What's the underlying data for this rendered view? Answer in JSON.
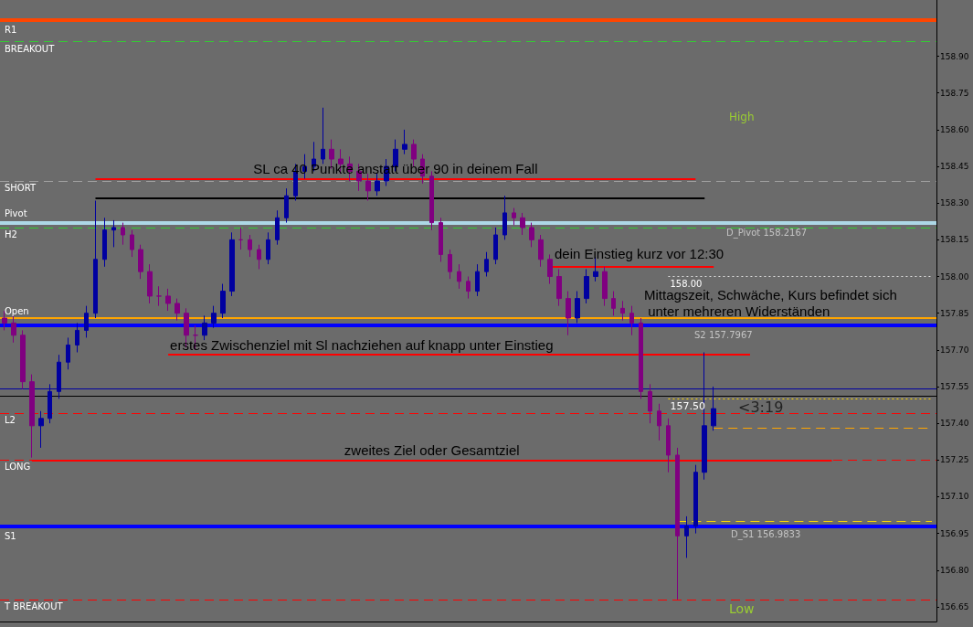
{
  "chart_data": {
    "type": "candlestick",
    "categories": [
      null,
      null,
      null,
      null,
      null,
      null,
      null,
      null,
      null,
      null,
      null,
      null,
      null,
      null,
      null,
      null,
      null,
      null,
      null,
      null,
      null,
      null,
      null,
      null,
      null,
      null,
      null,
      null,
      null,
      null,
      null,
      null,
      null,
      null,
      null,
      null,
      null,
      null,
      null,
      null,
      null,
      null,
      null,
      null,
      null,
      null,
      null,
      null,
      null,
      null,
      null,
      null,
      null,
      null,
      null,
      null,
      null,
      null,
      null,
      null,
      null,
      null,
      null,
      null,
      null,
      null,
      null,
      null,
      null,
      null,
      null,
      null,
      null,
      null,
      null,
      null,
      null,
      null,
      null,
      null,
      null,
      null,
      null,
      null,
      null,
      null,
      null,
      null,
      null,
      null,
      null,
      null,
      null,
      null,
      null,
      null,
      null,
      null,
      null,
      null,
      null,
      null,
      null
    ],
    "ohlc": [
      [
        157.83,
        157.86,
        157.78,
        157.81
      ],
      [
        157.81,
        157.84,
        157.73,
        157.76
      ],
      [
        157.76,
        157.78,
        157.54,
        157.57
      ],
      [
        157.57,
        157.6,
        157.26,
        157.39
      ],
      [
        157.39,
        157.45,
        157.3,
        157.42
      ],
      [
        157.42,
        157.56,
        157.4,
        157.53
      ],
      [
        157.53,
        157.68,
        157.5,
        157.65
      ],
      [
        157.65,
        157.75,
        157.62,
        157.72
      ],
      [
        157.72,
        157.81,
        157.69,
        157.78
      ],
      [
        157.78,
        157.88,
        157.75,
        157.85
      ],
      [
        157.85,
        158.31,
        157.83,
        158.07
      ],
      [
        158.07,
        158.24,
        158.04,
        158.19
      ],
      [
        158.19,
        158.23,
        158.12,
        158.2
      ],
      [
        158.2,
        158.22,
        158.13,
        158.17
      ],
      [
        158.17,
        158.19,
        158.08,
        158.11
      ],
      [
        158.11,
        158.13,
        157.99,
        158.02
      ],
      [
        158.02,
        158.05,
        157.89,
        157.92
      ],
      [
        157.92,
        157.96,
        157.88,
        157.92
      ],
      [
        157.92,
        157.95,
        157.86,
        157.89
      ],
      [
        157.89,
        157.91,
        157.82,
        157.85
      ],
      [
        157.85,
        157.87,
        157.71,
        157.76
      ],
      [
        157.76,
        157.8,
        157.7,
        157.76
      ],
      [
        157.76,
        157.84,
        157.74,
        157.81
      ],
      [
        157.81,
        157.88,
        157.79,
        157.85
      ],
      [
        157.85,
        157.97,
        157.83,
        157.94
      ],
      [
        157.94,
        158.18,
        157.92,
        158.15
      ],
      [
        158.15,
        158.2,
        158.11,
        158.15
      ],
      [
        158.15,
        158.17,
        158.08,
        158.11
      ],
      [
        158.11,
        158.13,
        158.03,
        158.07
      ],
      [
        158.07,
        158.18,
        158.05,
        158.15
      ],
      [
        158.15,
        158.27,
        158.13,
        158.24
      ],
      [
        158.24,
        158.36,
        158.22,
        158.33
      ],
      [
        158.33,
        158.46,
        158.31,
        158.43
      ],
      [
        158.43,
        158.5,
        158.4,
        158.45
      ],
      [
        158.45,
        158.55,
        158.43,
        158.48
      ],
      [
        158.48,
        158.69,
        158.46,
        158.52
      ],
      [
        158.52,
        158.56,
        158.44,
        158.48
      ],
      [
        158.48,
        158.52,
        158.42,
        158.46
      ],
      [
        158.46,
        158.49,
        158.39,
        158.43
      ],
      [
        158.43,
        158.46,
        158.35,
        158.39
      ],
      [
        158.39,
        158.42,
        158.31,
        158.35
      ],
      [
        158.35,
        158.42,
        158.33,
        158.39
      ],
      [
        158.39,
        158.48,
        158.37,
        158.45
      ],
      [
        158.45,
        158.56,
        158.43,
        158.52
      ],
      [
        158.52,
        158.6,
        158.5,
        158.54
      ],
      [
        158.54,
        158.56,
        158.45,
        158.48
      ],
      [
        158.48,
        158.5,
        158.38,
        158.41
      ],
      [
        158.41,
        158.43,
        158.19,
        158.22
      ],
      [
        158.22,
        158.24,
        158.06,
        158.09
      ],
      [
        158.09,
        158.11,
        157.99,
        158.02
      ],
      [
        158.02,
        158.05,
        157.95,
        157.98
      ],
      [
        157.98,
        158.0,
        157.91,
        157.94
      ],
      [
        157.94,
        158.05,
        157.92,
        158.02
      ],
      [
        158.02,
        158.1,
        158.0,
        158.07
      ],
      [
        158.07,
        158.2,
        158.05,
        158.17
      ],
      [
        158.17,
        158.33,
        158.15,
        158.26
      ],
      [
        158.26,
        158.28,
        158.21,
        158.24
      ],
      [
        158.24,
        158.26,
        158.17,
        158.2
      ],
      [
        158.2,
        158.22,
        158.12,
        158.15
      ],
      [
        158.15,
        158.17,
        158.04,
        158.07
      ],
      [
        158.07,
        158.09,
        157.97,
        158.0
      ],
      [
        158.0,
        158.03,
        157.88,
        157.91
      ],
      [
        157.91,
        157.94,
        157.76,
        157.83
      ],
      [
        157.83,
        157.94,
        157.81,
        157.91
      ],
      [
        157.91,
        158.03,
        157.89,
        158.0
      ],
      [
        158.0,
        158.08,
        157.98,
        158.02
      ],
      [
        158.02,
        158.04,
        157.88,
        157.91
      ],
      [
        157.91,
        157.94,
        157.84,
        157.87
      ],
      [
        157.87,
        157.9,
        157.82,
        157.85
      ],
      [
        157.85,
        157.88,
        157.76,
        157.81
      ],
      [
        157.81,
        157.83,
        157.5,
        157.53
      ],
      [
        157.53,
        157.56,
        157.4,
        157.45
      ],
      [
        157.45,
        157.48,
        157.33,
        157.39
      ],
      [
        157.39,
        157.42,
        157.2,
        157.27
      ],
      [
        157.27,
        157.3,
        156.68,
        156.94
      ],
      [
        156.94,
        157.02,
        156.85,
        156.98
      ],
      [
        156.98,
        157.23,
        156.95,
        157.2
      ],
      [
        157.2,
        157.69,
        157.17,
        157.39
      ],
      [
        157.39,
        157.55,
        157.37,
        157.46
      ],
      null,
      null,
      null,
      null,
      null,
      null,
      null,
      null,
      null,
      null,
      null,
      null,
      null,
      null,
      null,
      null,
      null,
      null,
      null,
      null,
      null,
      null,
      null,
      null
    ],
    "colors": [
      "#800080",
      "#800080",
      "#800080",
      "#800080",
      "#0000a0",
      "#0000a0",
      "#0000a0",
      "#0000a0",
      "#0000a0",
      "#0000a0",
      "#0000a0",
      "#0000a0",
      "#0000a0",
      "#800080",
      "#800080",
      "#800080",
      "#800080",
      "#800080",
      "#800080",
      "#800080",
      "#800080",
      "#800080",
      "#0000a0",
      "#0000a0",
      "#0000a0",
      "#0000a0",
      "#800080",
      "#800080",
      "#800080",
      "#0000a0",
      "#0000a0",
      "#0000a0",
      "#0000a0",
      "#0000a0",
      "#0000a0",
      "#0000a0",
      "#800080",
      "#800080",
      "#800080",
      "#800080",
      "#800080",
      "#0000a0",
      "#0000a0",
      "#0000a0",
      "#0000a0",
      "#800080",
      "#800080",
      "#800080",
      "#800080",
      "#800080",
      "#800080",
      "#800080",
      "#0000a0",
      "#0000a0",
      "#0000a0",
      "#0000a0",
      "#800080",
      "#800080",
      "#800080",
      "#800080",
      "#800080",
      "#800080",
      "#800080",
      "#0000a0",
      "#0000a0",
      "#0000a0",
      "#800080",
      "#800080",
      "#800080",
      "#800080",
      "#800080",
      "#800080",
      "#800080",
      "#800080",
      "#800080",
      "#0000a0",
      "#0000a0",
      "#0000a0",
      "#0000a0",
      null,
      null,
      null,
      null,
      null,
      null,
      null,
      null,
      null,
      null,
      null,
      null,
      null,
      null,
      null,
      null,
      null,
      null,
      null,
      null,
      null,
      null,
      null,
      null
    ],
    "ylim": [
      156.59,
      159.13
    ],
    "yticks": [
      {
        "value": 156.65,
        "label": "156.65"
      },
      {
        "value": 156.8,
        "label": "156.80"
      },
      {
        "value": 156.95,
        "label": "156.95"
      },
      {
        "value": 157.1,
        "label": "157.10"
      },
      {
        "value": 157.25,
        "label": "157.25"
      },
      {
        "value": 157.4,
        "label": "157.40"
      },
      {
        "value": 157.55,
        "label": "157.55"
      },
      {
        "value": 157.7,
        "label": "157.70"
      },
      {
        "value": 157.85,
        "label": "157.85"
      },
      {
        "value": 158.0,
        "label": "158.00"
      },
      {
        "value": 158.15,
        "label": "158.15"
      },
      {
        "value": 158.3,
        "label": "158.30"
      },
      {
        "value": 158.45,
        "label": "158.45"
      },
      {
        "value": 158.6,
        "label": "158.60"
      },
      {
        "value": 158.75,
        "label": "158.75"
      },
      {
        "value": 158.9,
        "label": "158.90"
      }
    ],
    "tick_labels": "y",
    "grid": false,
    "ref_lines": [
      {
        "axis": "y",
        "value": 159.05,
        "label": "R1",
        "color": "#ff4500",
        "line_style": "solid"
      },
      {
        "axis": "y",
        "value": 158.96,
        "label": "BREAKOUT",
        "color": "#33cc33",
        "line_style": "dashed"
      },
      {
        "axis": "y",
        "value": 158.39,
        "label": "SHORT",
        "color": "#a0a0a0",
        "line_style": "dashed"
      },
      {
        "axis": "y",
        "value": 158.4,
        "label": "SL ca 40 Punkte anstatt über 90 in deinem Fall",
        "color": "#ff0000",
        "line_style": "solid"
      },
      {
        "axis": "y",
        "value": 158.32,
        "label": null,
        "color": "#000000",
        "line_style": "solid"
      },
      {
        "axis": "y",
        "value": 158.2167,
        "label": "Pivot",
        "color": "#add8e6",
        "line_style": "solid"
      },
      {
        "axis": "y",
        "value": 158.2,
        "label": "H2",
        "color": "#33cc33",
        "line_style": "dashed"
      },
      {
        "axis": "y",
        "value": 158.04,
        "label": null,
        "color": "#ff0000",
        "line_style": "solid"
      },
      {
        "axis": "y",
        "value": 158.0,
        "label": "158.00",
        "color": "#dddddd",
        "line_style": "dotted"
      },
      {
        "axis": "y",
        "value": 157.83,
        "label": "Open",
        "color": "#ffa500",
        "line_style": "solid"
      },
      {
        "axis": "y",
        "value": 157.7967,
        "label": null,
        "color": "#0000ff",
        "line_style": "solid"
      },
      {
        "axis": "y",
        "value": 157.68,
        "label": "erstes Zwischenziel mit Sl nachziehen auf knapp unter Einstieg",
        "color": "#ff0000",
        "line_style": "solid"
      },
      {
        "axis": "y",
        "value": 157.54,
        "label": null,
        "color": "#0000a0",
        "line_style": "solid"
      },
      {
        "axis": "y",
        "value": 157.51,
        "label": null,
        "color": "#000000",
        "line_style": "solid"
      },
      {
        "axis": "y",
        "value": 157.5,
        "label": "157.50",
        "color": "#ffd700",
        "line_style": "dotted"
      },
      {
        "axis": "y",
        "value": 157.44,
        "label": "L2",
        "color": "#ff0000",
        "line_style": "dashed"
      },
      {
        "axis": "y",
        "value": 157.38,
        "label": null,
        "color": "#ffa500",
        "line_style": "dashed"
      },
      {
        "axis": "y",
        "value": 157.25,
        "label": "LONG",
        "color": "#ff0000",
        "line_style": "dashed"
      },
      {
        "axis": "y",
        "value": 157.25,
        "label": "zweites Ziel oder Gesamtziel",
        "color": "#ff0000",
        "line_style": "solid"
      },
      {
        "axis": "y",
        "value": 157.0,
        "label": null,
        "color": "#ffd700",
        "line_style": "dashed"
      },
      {
        "axis": "y",
        "value": 156.98,
        "label": "S1",
        "color": "#0000ff",
        "line_style": "solid"
      },
      {
        "axis": "y",
        "value": 156.68,
        "label": "T BREAKOUT",
        "color": "#ff0000",
        "line_style": "dashed"
      }
    ],
    "annotations": [
      "Mittagszeit, Schwäche, Kurs befindet sich\n unter mehreren Widerständen",
      {
        "text": "D_Pivot 158.2167",
        "y": 158.2167
      },
      {
        "text": "S2 157.7967",
        "y": 157.7967
      },
      {
        "text": "D_S1 156.9833",
        "y": 156.9833
      },
      "High",
      "Low",
      "<3:19",
      "dein Einstieg kurz vor 12:30"
    ]
  }
}
